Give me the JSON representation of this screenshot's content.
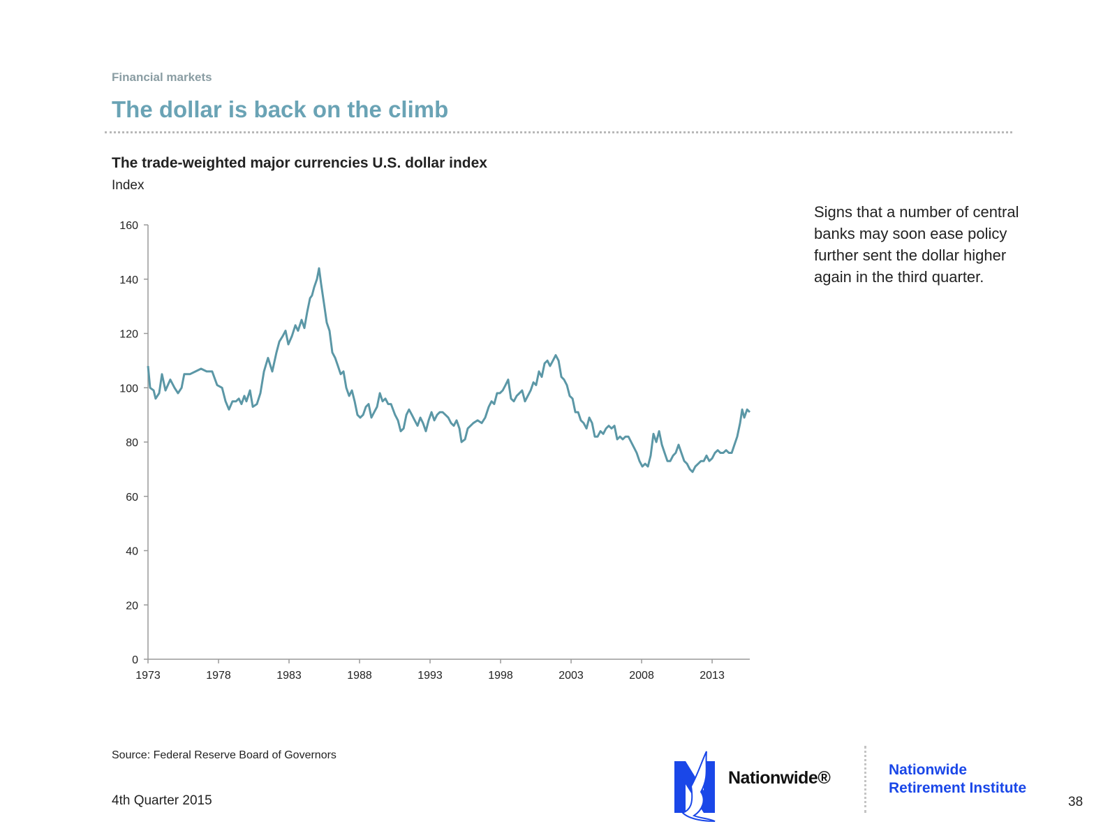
{
  "section": "Financial markets",
  "title": "The dollar is back on the climb",
  "note": "Signs that a number of central banks may soon ease policy further sent the dollar higher again in the third quarter.",
  "source": "Source: Federal Reserve Board of Governors",
  "footer": "4th Quarter 2015",
  "brand": "Nationwide®",
  "institute": [
    "Nationwide",
    "Retirement Institute"
  ],
  "page": "38",
  "chart_data": {
    "type": "line",
    "title": "The trade-weighted major currencies U.S. dollar index",
    "y_label": "Index",
    "color": "#5b97a6",
    "xlim": [
      1973,
      2015.67
    ],
    "xticks": [
      1973,
      1978,
      1983,
      1988,
      1993,
      1998,
      2003,
      2008,
      2013
    ],
    "ylim": [
      0,
      160
    ],
    "yticks": [
      0,
      20,
      40,
      60,
      80,
      100,
      120,
      140,
      160
    ],
    "grid": false,
    "x": [
      1973.0,
      1973.15,
      1973.4,
      1973.54,
      1973.79,
      1973.99,
      1974.24,
      1974.58,
      1974.88,
      1975.13,
      1975.38,
      1975.57,
      1975.97,
      1976.37,
      1976.76,
      1977.16,
      1977.55,
      1977.9,
      1978.25,
      1978.5,
      1978.74,
      1978.99,
      1979.24,
      1979.44,
      1979.63,
      1979.83,
      1979.98,
      1980.23,
      1980.43,
      1980.72,
      1980.97,
      1981.22,
      1981.51,
      1981.81,
      1982.11,
      1982.31,
      1982.55,
      1982.75,
      1982.95,
      1983.2,
      1983.45,
      1983.64,
      1983.89,
      1984.09,
      1984.29,
      1984.49,
      1984.63,
      1984.78,
      1984.98,
      1985.13,
      1985.28,
      1985.48,
      1985.67,
      1985.87,
      1986.07,
      1986.27,
      1986.47,
      1986.66,
      1986.86,
      1987.06,
      1987.26,
      1987.46,
      1987.65,
      1987.85,
      1988.05,
      1988.25,
      1988.45,
      1988.64,
      1988.84,
      1989.04,
      1989.24,
      1989.44,
      1989.63,
      1989.83,
      1990.03,
      1990.23,
      1990.52,
      1990.72,
      1990.92,
      1991.12,
      1991.32,
      1991.51,
      1991.71,
      1991.91,
      1992.11,
      1992.31,
      1992.5,
      1992.7,
      1992.9,
      1993.1,
      1993.3,
      1993.5,
      1993.69,
      1993.89,
      1994.09,
      1994.29,
      1994.49,
      1994.68,
      1994.88,
      1995.08,
      1995.23,
      1995.48,
      1995.67,
      1995.87,
      1996.07,
      1996.37,
      1996.66,
      1996.91,
      1997.16,
      1997.36,
      1997.55,
      1997.75,
      1997.95,
      1998.15,
      1998.35,
      1998.54,
      1998.74,
      1998.94,
      1999.14,
      1999.34,
      1999.53,
      1999.73,
      1999.93,
      2000.13,
      2000.33,
      2000.52,
      2000.72,
      2000.92,
      2001.12,
      2001.32,
      2001.51,
      2001.71,
      2001.91,
      2002.11,
      2002.31,
      2002.5,
      2002.7,
      2002.9,
      2003.1,
      2003.3,
      2003.5,
      2003.69,
      2003.89,
      2004.09,
      2004.29,
      2004.49,
      2004.68,
      2004.88,
      2005.08,
      2005.28,
      2005.48,
      2005.67,
      2005.87,
      2006.07,
      2006.27,
      2006.47,
      2006.66,
      2006.86,
      2007.06,
      2007.26,
      2007.46,
      2007.65,
      2007.85,
      2008.05,
      2008.25,
      2008.45,
      2008.64,
      2008.84,
      2009.04,
      2009.24,
      2009.44,
      2009.63,
      2009.83,
      2010.03,
      2010.23,
      2010.42,
      2010.62,
      2010.82,
      2011.02,
      2011.22,
      2011.42,
      2011.61,
      2011.81,
      2012.01,
      2012.21,
      2012.41,
      2012.6,
      2012.8,
      2013.0,
      2013.2,
      2013.4,
      2013.59,
      2013.79,
      2013.99,
      2014.19,
      2014.39,
      2014.58,
      2014.78,
      2014.98,
      2015.13,
      2015.28,
      2015.48,
      2015.67
    ],
    "values": [
      108,
      100,
      99,
      96,
      98,
      105,
      99,
      103,
      100,
      98,
      100,
      105,
      105,
      106,
      107,
      106,
      106,
      101,
      100,
      95,
      92,
      95,
      95,
      96,
      94,
      97,
      95,
      99,
      93,
      94,
      98,
      106,
      111,
      106,
      113,
      117,
      119,
      121,
      116,
      119,
      123,
      121,
      125,
      122,
      128,
      133,
      134,
      137,
      140,
      144,
      138,
      131,
      124,
      121,
      113,
      111,
      108,
      105,
      106,
      100,
      97,
      99,
      95,
      90,
      89,
      90,
      93,
      94,
      89,
      91,
      93,
      98,
      95,
      96,
      94,
      94,
      90,
      88,
      84,
      85,
      90,
      92,
      90,
      88,
      86,
      89,
      87,
      84,
      88,
      91,
      88,
      90,
      91,
      91,
      90,
      89,
      87,
      86,
      88,
      85,
      80,
      81,
      85,
      86,
      87,
      88,
      87,
      89,
      93,
      95,
      94,
      98,
      98,
      99,
      101,
      103,
      96,
      95,
      97,
      98,
      99,
      95,
      97,
      99,
      102,
      101,
      106,
      104,
      109,
      110,
      108,
      110,
      112,
      110,
      104,
      103,
      101,
      97,
      96,
      91,
      91,
      88,
      87,
      85,
      89,
      87,
      82,
      82,
      84,
      83,
      85,
      86,
      85,
      86,
      81,
      82,
      81,
      82,
      82,
      80,
      78,
      76,
      73,
      71,
      72,
      71,
      75,
      83,
      80,
      84,
      79,
      76,
      73,
      73,
      75,
      76,
      79,
      76,
      73,
      72,
      70,
      69,
      71,
      72,
      73,
      73,
      75,
      73,
      74,
      76,
      77,
      76,
      76,
      77,
      76,
      76,
      79,
      82,
      87,
      92,
      89,
      92,
      91
    ]
  }
}
